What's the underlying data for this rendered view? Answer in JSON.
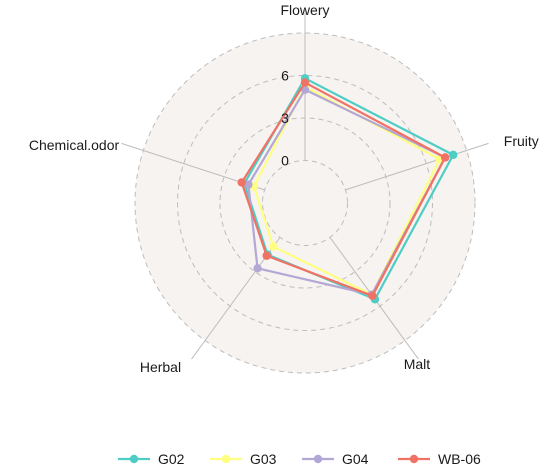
{
  "chart_data": {
    "type": "radar",
    "axes": [
      "Flowery",
      "Fruity",
      "Malt",
      "Herbal",
      "Chemical.odor"
    ],
    "rlim": [
      -3,
      9
    ],
    "radial_ticks": [
      {
        "value": 0,
        "label": "0"
      },
      {
        "value": 3,
        "label": "3"
      },
      {
        "value": 6,
        "label": "6"
      }
    ],
    "series": [
      {
        "name": "G02",
        "color": "#4ECDC4",
        "values": [
          5.8,
          8.0,
          5.4,
          1.5,
          1.5
        ]
      },
      {
        "name": "G03",
        "color": "#FFFF80",
        "values": [
          5.2,
          7.0,
          5.0,
          0.8,
          0.8
        ]
      },
      {
        "name": "G04",
        "color": "#B3A7D6",
        "values": [
          5.0,
          7.4,
          5.0,
          2.7,
          1.2
        ]
      },
      {
        "name": "WB-06",
        "color": "#F07264",
        "values": [
          5.5,
          7.4,
          5.1,
          1.6,
          1.7
        ]
      }
    ],
    "legend_position": "bottom"
  }
}
